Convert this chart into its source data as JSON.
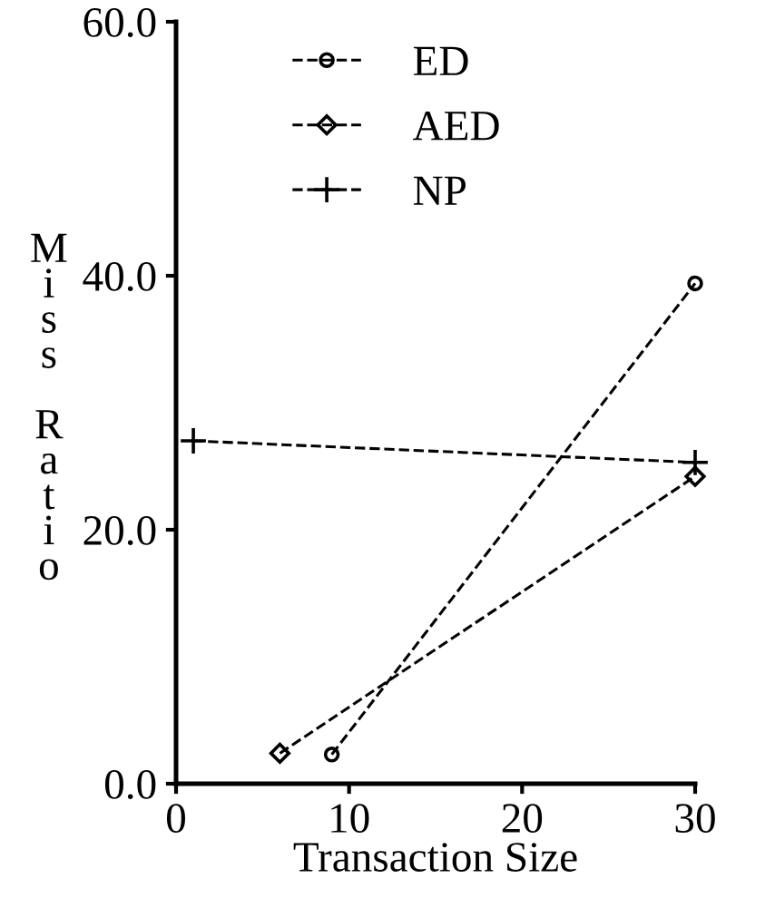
{
  "chart_data": {
    "type": "line",
    "xlabel": "Transaction Size",
    "ylabel": "Miss Ratio",
    "xlim": [
      0,
      30
    ],
    "ylim": [
      0,
      60
    ],
    "xticks": [
      0,
      10,
      20,
      30
    ],
    "yticks": [
      {
        "value": 0,
        "label": "0.0"
      },
      {
        "value": 20,
        "label": "20.0"
      },
      {
        "value": 40,
        "label": "40.0"
      },
      {
        "value": 60,
        "label": "60.0"
      }
    ],
    "line_style": "dashed",
    "grid": false,
    "legend": "top left",
    "series": [
      {
        "name": "ED",
        "color": "#000000",
        "marker": "circle",
        "x": [
          9,
          30
        ],
        "values": [
          2.3,
          39.4
        ]
      },
      {
        "name": "AED",
        "color": "#000000",
        "marker": "diamond",
        "x": [
          6,
          30
        ],
        "values": [
          2.4,
          24.2
        ]
      },
      {
        "name": "NP",
        "color": "#000000",
        "marker": "cross",
        "x": [
          1,
          30
        ],
        "values": [
          27.0,
          25.3
        ]
      }
    ]
  }
}
